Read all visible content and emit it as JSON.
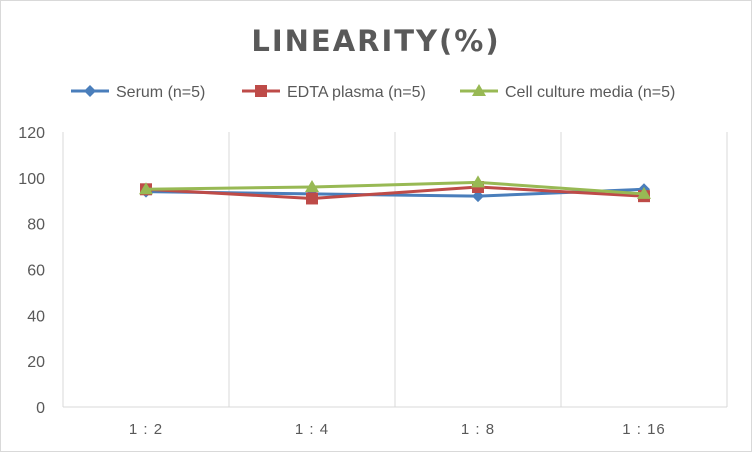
{
  "chart_data": {
    "type": "line",
    "title": "LINEARITY(%)",
    "xlabel": "",
    "ylabel": "",
    "categories": [
      "1:2",
      "1:4",
      "1:8",
      "1:16"
    ],
    "ylim": [
      0,
      120
    ],
    "yticks": [
      0,
      20,
      40,
      60,
      80,
      100,
      120
    ],
    "grid": "vertical category dividers",
    "legend_position": "top",
    "series": [
      {
        "name": "Serum (n=5)",
        "values": [
          94,
          93,
          92,
          95
        ],
        "color": "#4a7ebb",
        "marker": "diamond"
      },
      {
        "name": "EDTA plasma (n=5)",
        "values": [
          95,
          91,
          96,
          92
        ],
        "color": "#be4b48",
        "marker": "square"
      },
      {
        "name": "Cell culture media (n=5)",
        "values": [
          95,
          96,
          98,
          93
        ],
        "color": "#98b954",
        "marker": "triangle"
      }
    ]
  }
}
